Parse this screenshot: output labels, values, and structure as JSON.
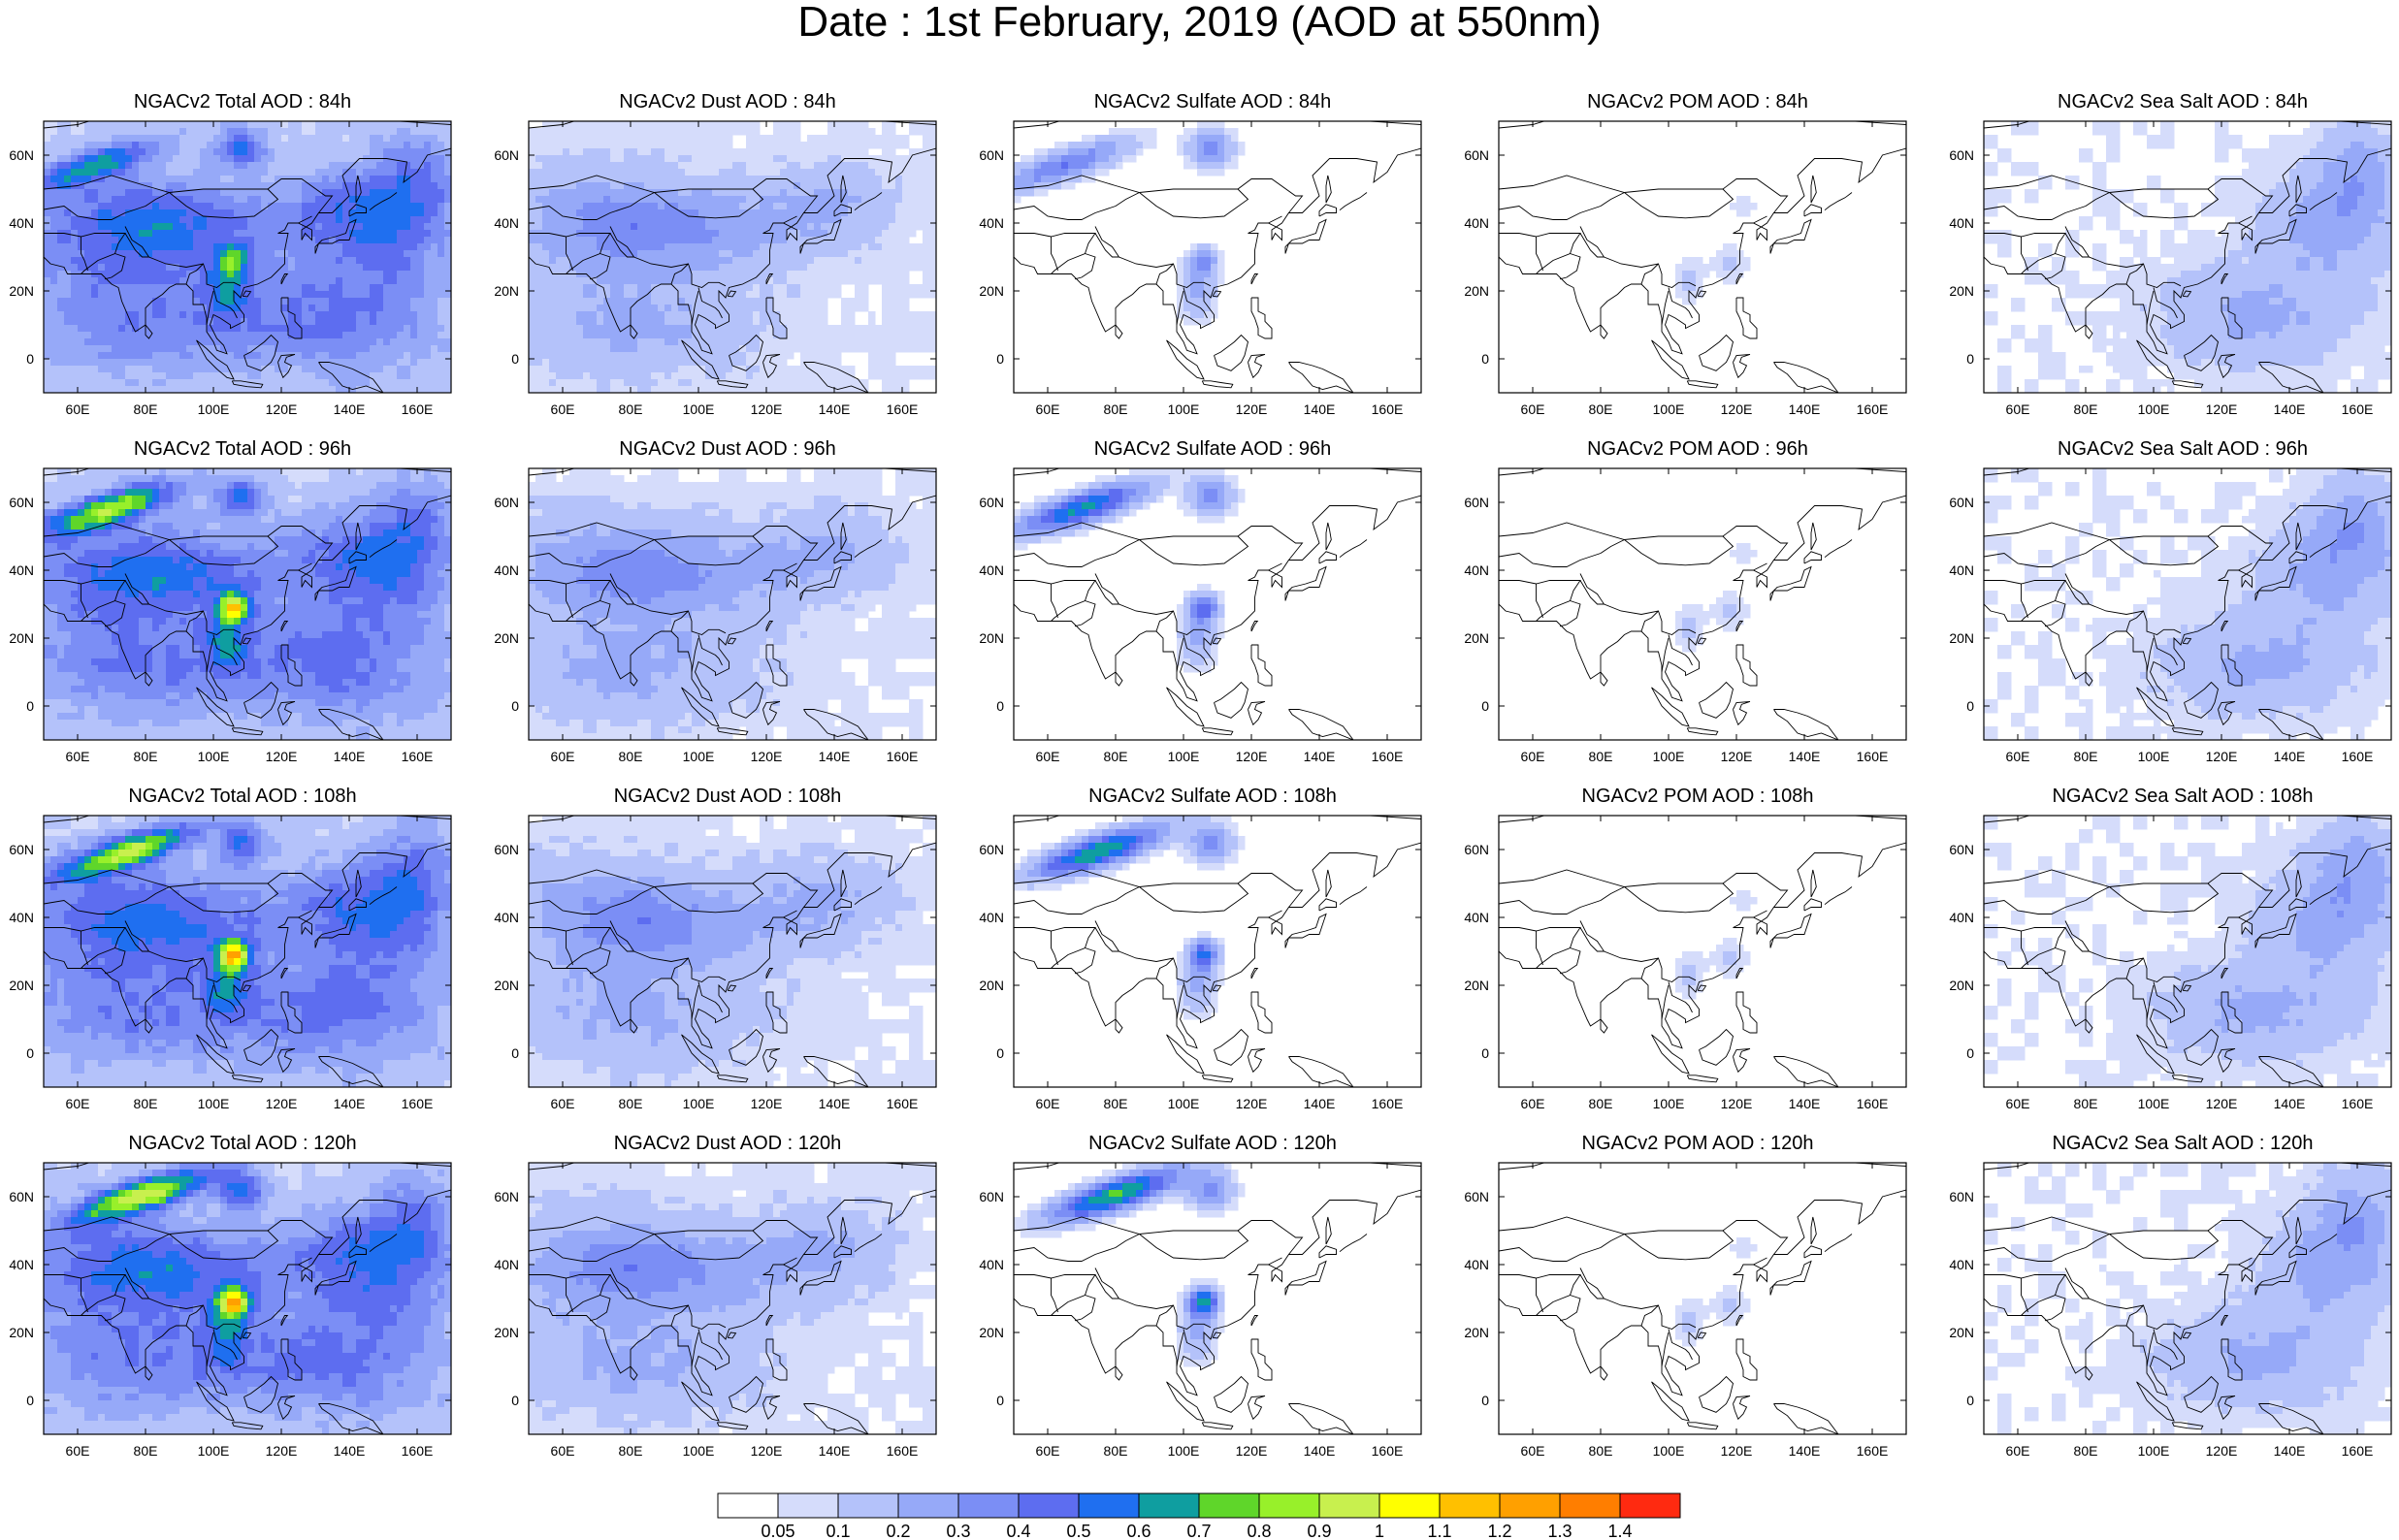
{
  "title": "Date : 1st February, 2019 (AOD at 550nm)",
  "panels": [
    [
      {
        "title": "NGACv2 Total AOD : 84h",
        "species": "total",
        "forecast_hour": "84h"
      },
      {
        "title": "NGACv2 Dust AOD : 84h",
        "species": "dust",
        "forecast_hour": "84h"
      },
      {
        "title": "NGACv2 Sulfate AOD : 84h",
        "species": "sulfate",
        "forecast_hour": "84h"
      },
      {
        "title": "NGACv2 POM AOD : 84h",
        "species": "pom",
        "forecast_hour": "84h"
      },
      {
        "title": "NGACv2 Sea Salt AOD : 84h",
        "species": "seasalt",
        "forecast_hour": "84h"
      }
    ],
    [
      {
        "title": "NGACv2 Total AOD : 96h",
        "species": "total",
        "forecast_hour": "96h"
      },
      {
        "title": "NGACv2 Dust AOD : 96h",
        "species": "dust",
        "forecast_hour": "96h"
      },
      {
        "title": "NGACv2 Sulfate AOD : 96h",
        "species": "sulfate",
        "forecast_hour": "96h"
      },
      {
        "title": "NGACv2 POM AOD : 96h",
        "species": "pom",
        "forecast_hour": "96h"
      },
      {
        "title": "NGACv2 Sea Salt AOD : 96h",
        "species": "seasalt",
        "forecast_hour": "96h"
      }
    ],
    [
      {
        "title": "NGACv2 Total AOD : 108h",
        "species": "total",
        "forecast_hour": "108h"
      },
      {
        "title": "NGACv2 Dust AOD : 108h",
        "species": "dust",
        "forecast_hour": "108h"
      },
      {
        "title": "NGACv2 Sulfate AOD : 108h",
        "species": "sulfate",
        "forecast_hour": "108h"
      },
      {
        "title": "NGACv2 POM AOD : 108h",
        "species": "pom",
        "forecast_hour": "108h"
      },
      {
        "title": "NGACv2 Sea Salt AOD : 108h",
        "species": "seasalt",
        "forecast_hour": "108h"
      }
    ],
    [
      {
        "title": "NGACv2 Total AOD : 120h",
        "species": "total",
        "forecast_hour": "120h"
      },
      {
        "title": "NGACv2 Dust AOD : 120h",
        "species": "dust",
        "forecast_hour": "120h"
      },
      {
        "title": "NGACv2 Sulfate AOD : 120h",
        "species": "sulfate",
        "forecast_hour": "120h"
      },
      {
        "title": "NGACv2 POM AOD : 120h",
        "species": "pom",
        "forecast_hour": "120h"
      },
      {
        "title": "NGACv2 Sea Salt  AOD : 120h",
        "species": "seasalt",
        "forecast_hour": "120h"
      }
    ]
  ],
  "map": {
    "lon_range": [
      50,
      170
    ],
    "lat_range": [
      -10,
      70
    ],
    "lon_ticks": [
      "60E",
      "80E",
      "100E",
      "120E",
      "140E",
      "160E"
    ],
    "lon_tick_values": [
      60,
      80,
      100,
      120,
      140,
      160
    ],
    "lat_ticks": [
      "60N",
      "40N",
      "20N",
      "0"
    ],
    "lat_tick_values": [
      60,
      40,
      20,
      0
    ]
  },
  "colorbar": {
    "colors": [
      "#ffffff",
      "#d5dcfb",
      "#b4c2fa",
      "#96a9f8",
      "#7b8ef5",
      "#5d6df0",
      "#1f6ff0",
      "#0f9ea0",
      "#5fd62a",
      "#98f02a",
      "#c8f04e",
      "#ffff00",
      "#ffc000",
      "#ffa000",
      "#ff7e00",
      "#ff2a10"
    ],
    "labels": [
      "0.05",
      "0.1",
      "0.2",
      "0.3",
      "0.4",
      "0.5",
      "0.6",
      "0.7",
      "0.8",
      "0.9",
      "1",
      "1.1",
      "1.2",
      "1.3",
      "1.4"
    ]
  }
}
